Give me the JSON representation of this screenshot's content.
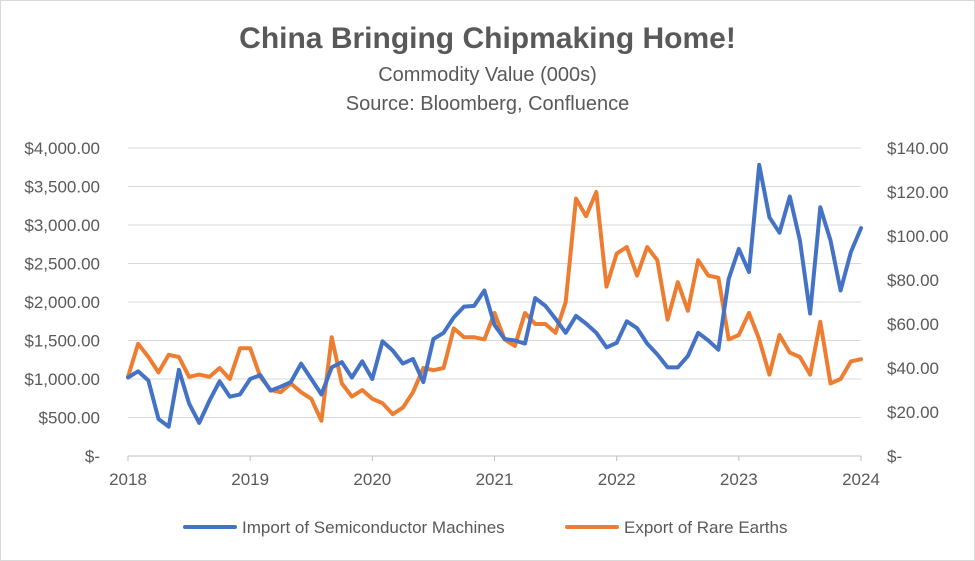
{
  "chart_data": {
    "type": "line",
    "title": "China Bringing Chipmaking Home!",
    "subtitle_1": "Commodity Value (000s)",
    "subtitle_2": "Source: Bloomberg, Confluence",
    "x_ticks": [
      "2018",
      "2019",
      "2020",
      "2021",
      "2022",
      "2023",
      "2024"
    ],
    "xlim": [
      2018,
      2024
    ],
    "y_left_ticks": [
      "$-",
      "$500.00",
      "$1,000.00",
      "$1,500.00",
      "$2,000.00",
      "$2,500.00",
      "$3,000.00",
      "$3,500.00",
      "$4,000.00"
    ],
    "y_left_lim": [
      0,
      4000
    ],
    "y_right_ticks": [
      "$-",
      "$20.00",
      "$40.00",
      "$60.00",
      "$80.00",
      "$100.00",
      "$120.00",
      "$140.00"
    ],
    "y_right_lim": [
      0,
      140
    ],
    "legend_position": "bottom",
    "series": [
      {
        "name": "Import of Semiconductor Machines",
        "axis": "left",
        "color": "#4472c4",
        "x": [
          2018.0,
          2018.083,
          2018.167,
          2018.25,
          2018.333,
          2018.417,
          2018.5,
          2018.583,
          2018.667,
          2018.75,
          2018.833,
          2018.917,
          2019.0,
          2019.083,
          2019.167,
          2019.25,
          2019.333,
          2019.417,
          2019.5,
          2019.583,
          2019.667,
          2019.75,
          2019.833,
          2019.917,
          2020.0,
          2020.083,
          2020.167,
          2020.25,
          2020.333,
          2020.417,
          2020.5,
          2020.583,
          2020.667,
          2020.75,
          2020.833,
          2020.917,
          2021.0,
          2021.083,
          2021.167,
          2021.25,
          2021.333,
          2021.417,
          2021.5,
          2021.583,
          2021.667,
          2021.75,
          2021.833,
          2021.917,
          2022.0,
          2022.083,
          2022.167,
          2022.25,
          2022.333,
          2022.417,
          2022.5,
          2022.583,
          2022.667,
          2022.75,
          2022.833,
          2022.917,
          2023.0,
          2023.083,
          2023.167,
          2023.25,
          2023.333,
          2023.417,
          2023.5,
          2023.583,
          2023.667,
          2023.75,
          2023.833,
          2023.917,
          2024.0
        ],
        "values": [
          1020,
          1100,
          980,
          480,
          380,
          1120,
          680,
          430,
          720,
          970,
          770,
          800,
          1000,
          1050,
          850,
          900,
          960,
          1200,
          1000,
          800,
          1150,
          1220,
          1020,
          1230,
          1000,
          1490,
          1370,
          1200,
          1260,
          960,
          1520,
          1600,
          1800,
          1940,
          1950,
          2150,
          1700,
          1520,
          1500,
          1460,
          2050,
          1950,
          1780,
          1600,
          1820,
          1720,
          1600,
          1410,
          1470,
          1750,
          1660,
          1460,
          1320,
          1150,
          1150,
          1300,
          1600,
          1500,
          1380,
          2300,
          2690,
          2390,
          3780,
          3100,
          2900,
          3370,
          2800,
          1850,
          3230,
          2800,
          2150,
          2650,
          2960
        ]
      },
      {
        "name": "Export of Rare Earths",
        "axis": "right",
        "color": "#ed7d31",
        "x": [
          2018.0,
          2018.083,
          2018.167,
          2018.25,
          2018.333,
          2018.417,
          2018.5,
          2018.583,
          2018.667,
          2018.75,
          2018.833,
          2018.917,
          2019.0,
          2019.083,
          2019.167,
          2019.25,
          2019.333,
          2019.417,
          2019.5,
          2019.583,
          2019.667,
          2019.75,
          2019.833,
          2019.917,
          2020.0,
          2020.083,
          2020.167,
          2020.25,
          2020.333,
          2020.417,
          2020.5,
          2020.583,
          2020.667,
          2020.75,
          2020.833,
          2020.917,
          2021.0,
          2021.083,
          2021.167,
          2021.25,
          2021.333,
          2021.417,
          2021.5,
          2021.583,
          2021.667,
          2021.75,
          2021.833,
          2021.917,
          2022.0,
          2022.083,
          2022.167,
          2022.25,
          2022.333,
          2022.417,
          2022.5,
          2022.583,
          2022.667,
          2022.75,
          2022.833,
          2022.917,
          2023.0,
          2023.083,
          2023.167,
          2023.25,
          2023.333,
          2023.417,
          2023.5,
          2023.583,
          2023.667,
          2023.75,
          2023.833,
          2023.917,
          2024.0
        ],
        "values": [
          36,
          51,
          45,
          38,
          46,
          45,
          36,
          37,
          36,
          40,
          35,
          49,
          49,
          36,
          30,
          29,
          33,
          29,
          26,
          16,
          54,
          33,
          27,
          30,
          26,
          24,
          19,
          22,
          29,
          40,
          39,
          40,
          58,
          54,
          54,
          53,
          65,
          53,
          50,
          65,
          60,
          60,
          56,
          70,
          117,
          109,
          120,
          77,
          92,
          95,
          82,
          95,
          89,
          62,
          79,
          66,
          89,
          82,
          81,
          53,
          55,
          65,
          53,
          37,
          55,
          47,
          45,
          37,
          61,
          33,
          35,
          43,
          44
        ]
      }
    ]
  }
}
